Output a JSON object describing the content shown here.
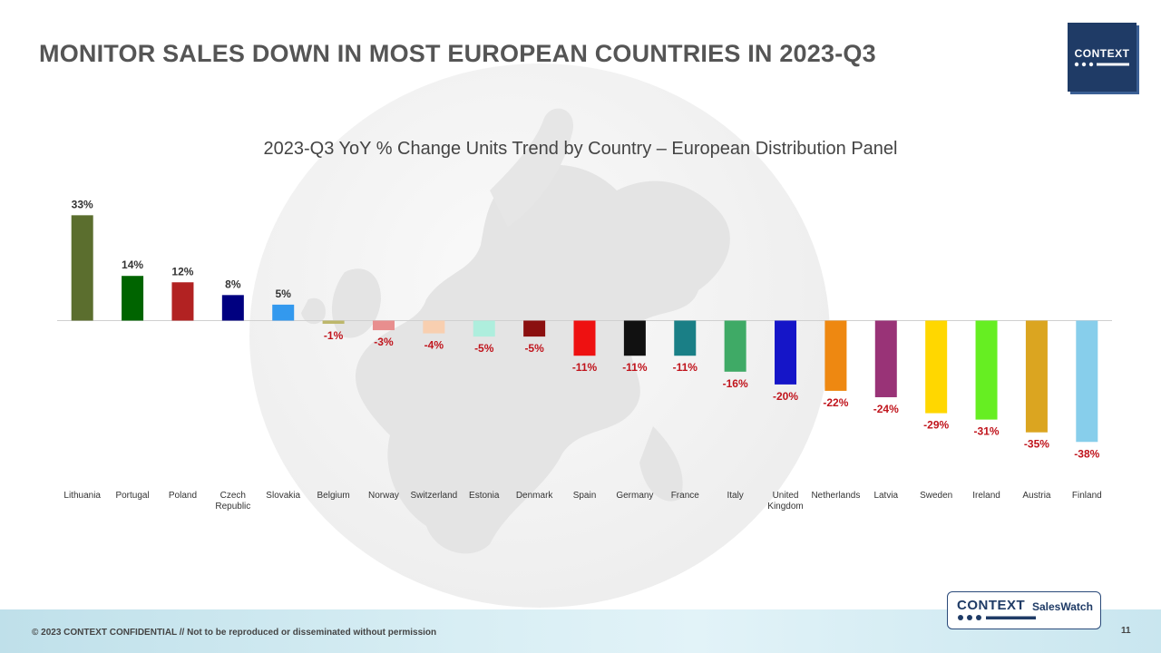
{
  "slide": {
    "title": "MONITOR SALES DOWN IN MOST EUROPEAN COUNTRIES IN 2023-Q3",
    "footer": "© 2023 CONTEXT CONFIDENTIAL // Not to be reproduced or disseminated without permission",
    "page_number": "11"
  },
  "logo": {
    "text": "CONTEXT"
  },
  "badge": {
    "brand": "CONTEXT",
    "product": "SalesWatch"
  },
  "chart_data": {
    "type": "bar",
    "title": "2023-Q3 YoY % Change Units Trend by Country – European Distribution Panel",
    "xlabel": "",
    "ylabel": "",
    "unit": "%",
    "ylim": [
      -40,
      35
    ],
    "grid": false,
    "legend": "none",
    "categories": [
      "Lithuania",
      "Portugal",
      "Poland",
      "Czech Republic",
      "Slovakia",
      "Belgium",
      "Norway",
      "Switzerland",
      "Estonia",
      "Denmark",
      "Spain",
      "Germany",
      "France",
      "Italy",
      "United Kingdom",
      "Netherlands",
      "Latvia",
      "Sweden",
      "Ireland",
      "Austria",
      "Finland"
    ],
    "category_lines": [
      [
        "Lithuania"
      ],
      [
        "Portugal"
      ],
      [
        "Poland"
      ],
      [
        "Czech",
        "Republic"
      ],
      [
        "Slovakia"
      ],
      [
        "Belgium"
      ],
      [
        "Norway"
      ],
      [
        "Switzerland"
      ],
      [
        "Estonia"
      ],
      [
        "Denmark"
      ],
      [
        "Spain"
      ],
      [
        "Germany"
      ],
      [
        "France"
      ],
      [
        "Italy"
      ],
      [
        "United",
        "Kingdom"
      ],
      [
        "Netherlands"
      ],
      [
        "Latvia"
      ],
      [
        "Sweden"
      ],
      [
        "Ireland"
      ],
      [
        "Austria"
      ],
      [
        "Finland"
      ]
    ],
    "values": [
      33,
      14,
      12,
      8,
      5,
      -1,
      -3,
      -4,
      -5,
      -5,
      -11,
      -11,
      -11,
      -16,
      -20,
      -22,
      -24,
      -29,
      -31,
      -35,
      -38
    ],
    "data_labels": [
      "33%",
      "14%",
      "12%",
      "8%",
      "5%",
      "-1%",
      "-3%",
      "-4%",
      "-5%",
      "-5%",
      "-11%",
      "-11%",
      "-11%",
      "-16%",
      "-20%",
      "-22%",
      "-24%",
      "-29%",
      "-31%",
      "-35%",
      "-38%"
    ],
    "colors": [
      "#5b6e2e",
      "#006400",
      "#b22222",
      "#000080",
      "#3399ee",
      "#bdb76b",
      "#e88e8e",
      "#f8cfb0",
      "#aeeedd",
      "#8b1010",
      "#ee1111",
      "#111111",
      "#1a7f86",
      "#3faa66",
      "#1515c8",
      "#ee8811",
      "#993377",
      "#ffd700",
      "#66ee22",
      "#dba520",
      "#87ceeb"
    ],
    "positive_label_color": "#333333",
    "negative_label_color": "#c0141c"
  }
}
